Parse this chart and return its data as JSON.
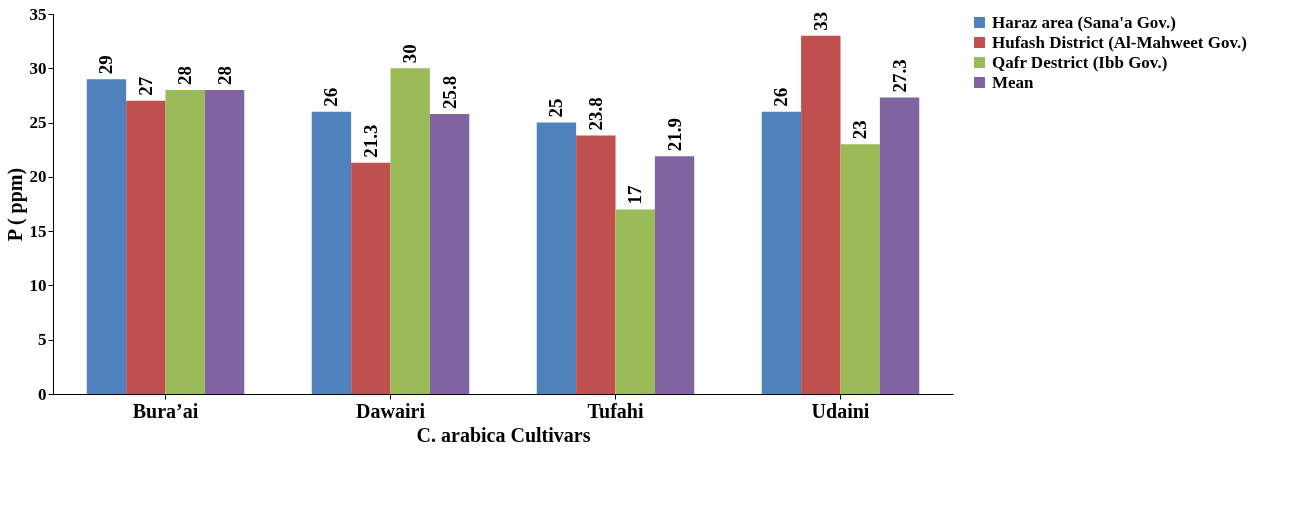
{
  "chart_data": {
    "type": "bar",
    "xlabel": "C. arabica Cultivars",
    "ylabel": "P ( ppm)",
    "categories": [
      "Bura’ai",
      "Dawairi",
      "Tufahi",
      "Udaini"
    ],
    "series": [
      {
        "name": "Haraz area (Sana'a Gov.)",
        "color": "#4f81bd",
        "values": [
          29,
          26,
          25,
          26
        ]
      },
      {
        "name": "Hufash District (Al-Mahweet Gov.)",
        "color": "#c0504d",
        "values": [
          27,
          21.3,
          23.8,
          33
        ]
      },
      {
        "name": "Qafr Destrict (Ibb Gov.)",
        "color": "#9bbb59",
        "values": [
          28,
          30,
          17,
          23
        ]
      },
      {
        "name": "Mean",
        "color": "#8064a2",
        "values": [
          28,
          25.8,
          21.9,
          27.3
        ]
      }
    ],
    "ylim": [
      0,
      35
    ],
    "yticks": [
      0,
      5,
      10,
      15,
      20,
      25,
      30,
      35
    ],
    "grid": false,
    "legend": "right",
    "data_labels": true
  }
}
